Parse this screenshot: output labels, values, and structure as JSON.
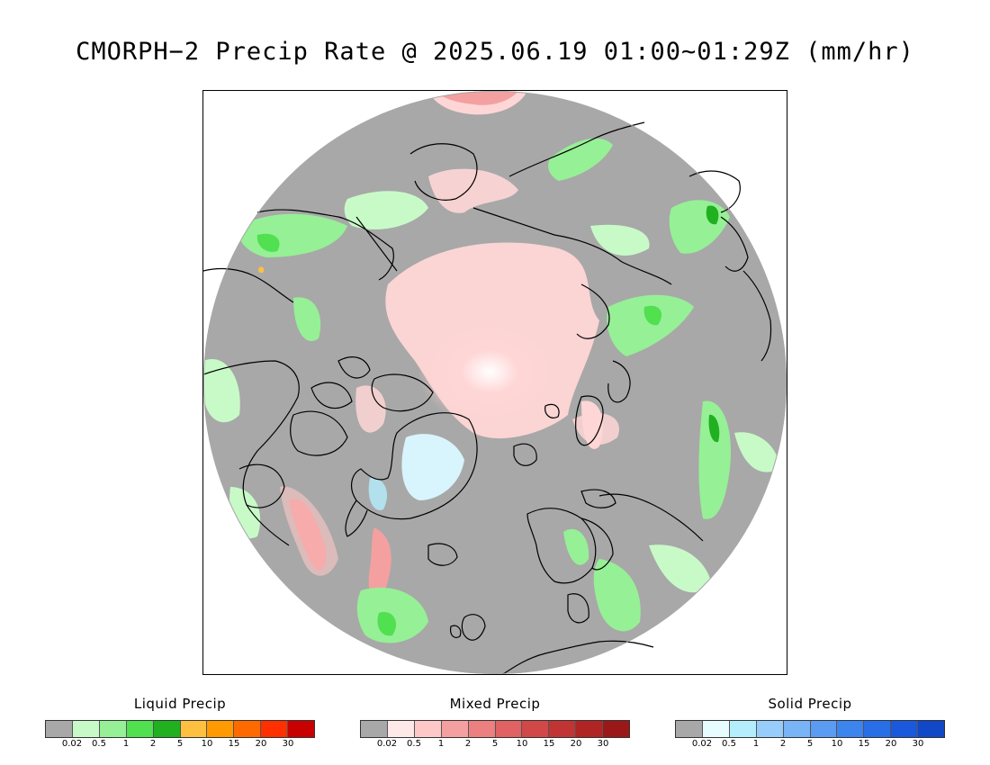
{
  "title": "CMORPH−2 Precip Rate @ 2025.06.19 01:00~01:29Z (mm/hr)",
  "colors": {
    "no_precip": "#a8a8a8",
    "coast": "#000000",
    "outside": "#ffffff"
  },
  "legends": [
    {
      "title": "Liquid Precip",
      "ticks": [
        "0.02",
        "0.5",
        "1",
        "2",
        "5",
        "10",
        "15",
        "20",
        "30"
      ],
      "colors": [
        "#a8a8a8",
        "#c8fac8",
        "#96f096",
        "#50e050",
        "#20b020",
        "#ffc040",
        "#ff9a00",
        "#ff6a00",
        "#ff3000",
        "#c80000"
      ]
    },
    {
      "title": "Mixed Precip",
      "ticks": [
        "0.02",
        "0.5",
        "1",
        "2",
        "5",
        "10",
        "15",
        "20",
        "30"
      ],
      "colors": [
        "#a8a8a8",
        "#ffe8e8",
        "#ffc8c8",
        "#f4a0a0",
        "#ec8080",
        "#e06262",
        "#d04848",
        "#c03434",
        "#b02424",
        "#9a1818"
      ]
    },
    {
      "title": "Solid Precip",
      "ticks": [
        "0.02",
        "0.5",
        "1",
        "2",
        "5",
        "10",
        "15",
        "20",
        "30"
      ],
      "colors": [
        "#a8a8a8",
        "#e6fcff",
        "#b4eefc",
        "#96cdfa",
        "#78b4f6",
        "#5a9cf2",
        "#3c84ee",
        "#286ee6",
        "#1a58dc",
        "#1048c8"
      ]
    }
  ]
}
